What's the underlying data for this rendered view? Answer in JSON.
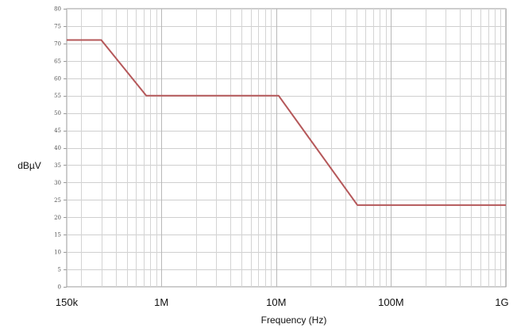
{
  "chart_data": {
    "type": "line",
    "title": "",
    "xlabel": "Frequency (Hz)",
    "ylabel": "dBµV",
    "x_scale": "log",
    "xlim": [
      150000,
      1000000000
    ],
    "ylim": [
      0,
      80
    ],
    "grid": true,
    "x_tick_values": [
      150000,
      1000000,
      10000000,
      100000000,
      1000000000
    ],
    "x_tick_labels": [
      "150k",
      "1M",
      "10M",
      "100M",
      "1G"
    ],
    "y_ticks": [
      0,
      5,
      10,
      15,
      20,
      25,
      30,
      35,
      40,
      45,
      50,
      55,
      60,
      65,
      70,
      75,
      80
    ],
    "series": [
      {
        "color": "#b5585a",
        "points": [
          {
            "x": 150000,
            "y": 71
          },
          {
            "x": 300000,
            "y": 71
          },
          {
            "x": 740000,
            "y": 55
          },
          {
            "x": 10500000,
            "y": 55
          },
          {
            "x": 51000000,
            "y": 23.5
          },
          {
            "x": 1000000000,
            "y": 23.5
          }
        ]
      }
    ]
  }
}
